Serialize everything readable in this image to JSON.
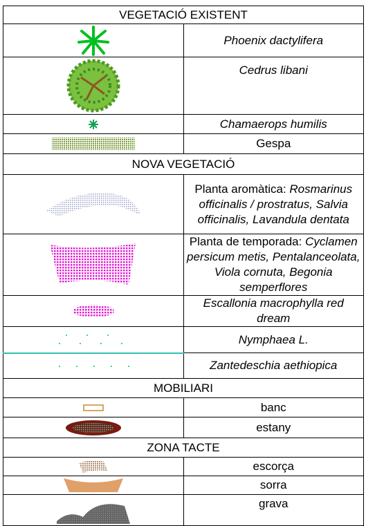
{
  "sections": [
    {
      "title": "VEGETACIÓ EXISTENT",
      "rows": [
        {
          "italic": "Phoenix dactylifera"
        },
        {
          "italic": "Cedrus libani"
        },
        {
          "italic": "Chamaerops humilis"
        },
        {
          "text": "Gespa"
        }
      ]
    },
    {
      "title": "NOVA VEGETACIÓ",
      "rows": [
        {
          "text": "Planta aromàtica:",
          "italic": "Rosmarinus officinalis / prostratus, Salvia officinalis, Lavandula dentata"
        },
        {
          "text": "Planta de temporada:",
          "italic": "Cyclamen persicum metis, Pentalanceolata, Viola cornuta, Begonia semperflores"
        },
        {
          "italic": "Escallonia macrophylla red dream"
        },
        {
          "italic": "Nymphaea L."
        },
        {
          "italic": "Zantedeschia aethiopica"
        }
      ]
    },
    {
      "title": "MOBILIARI",
      "rows": [
        {
          "text": "banc"
        },
        {
          "text": "estany"
        }
      ]
    },
    {
      "title": "ZONA TACTE",
      "rows": [
        {
          "text": "escorça"
        },
        {
          "text": "sorra"
        },
        {
          "text": "grava"
        }
      ]
    }
  ]
}
